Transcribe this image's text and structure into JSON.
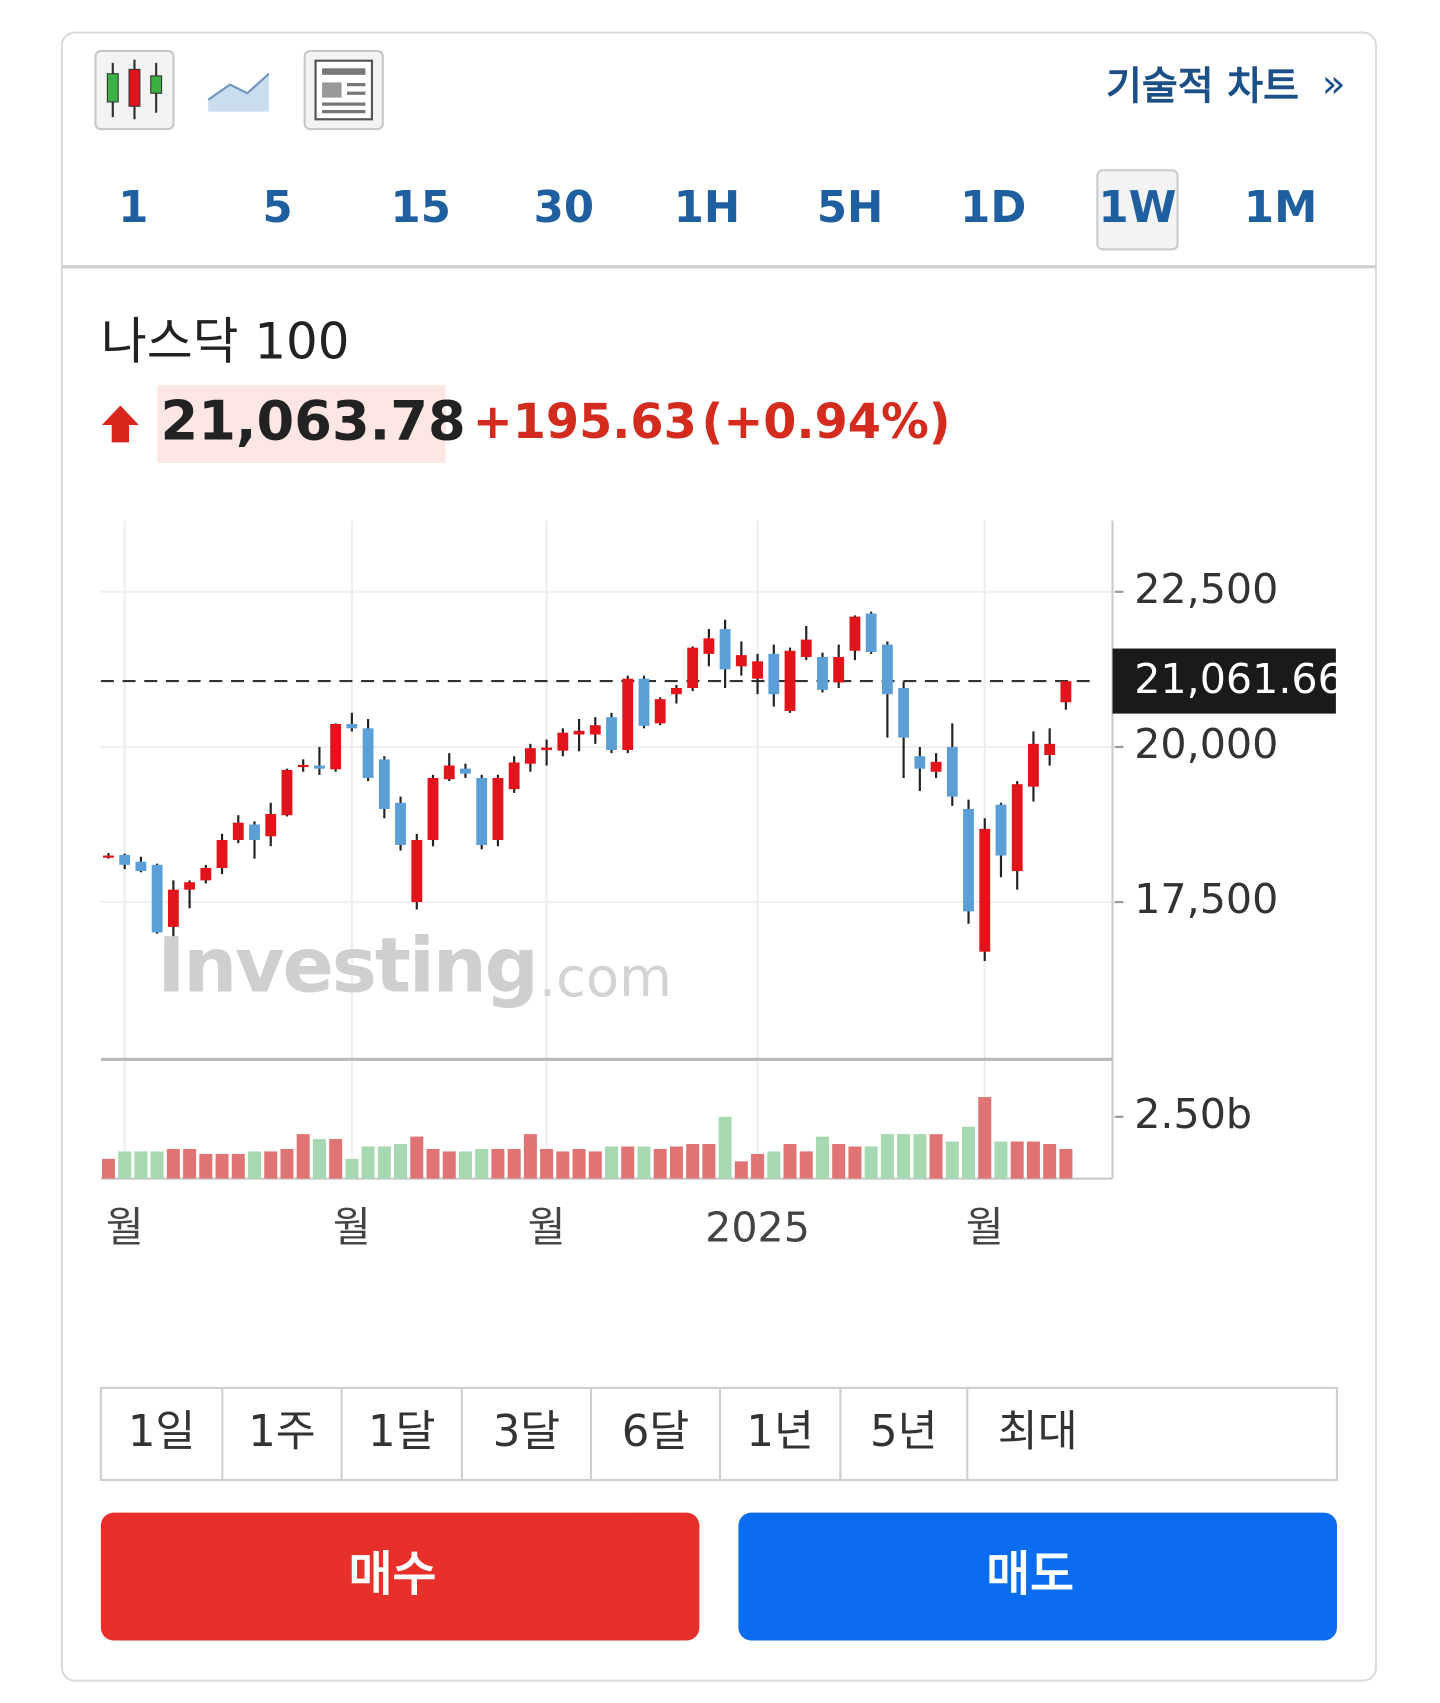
{
  "toolbar": {
    "link": "기술적 차트",
    "link_arrow": "»"
  },
  "intervals": [
    "1",
    "5",
    "15",
    "30",
    "1H",
    "5H",
    "1D",
    "1W",
    "1M"
  ],
  "selected_interval": "1W",
  "quote": {
    "name": "나스닥 100",
    "price": "21,063.78",
    "change": "+195.63",
    "change_pct": "(+0.94%)"
  },
  "chart_data": {
    "type": "candlestick",
    "categories": [
      null,
      "월",
      null,
      null,
      null,
      null,
      null,
      null,
      null,
      null,
      null,
      null,
      null,
      null,
      null,
      "월",
      null,
      null,
      null,
      null,
      null,
      null,
      null,
      null,
      null,
      null,
      null,
      "월",
      null,
      null,
      null,
      null,
      null,
      null,
      null,
      null,
      null,
      null,
      null,
      null,
      "2025",
      null,
      null,
      null,
      null,
      null,
      null,
      null,
      null,
      null,
      null,
      null,
      null,
      null,
      "월",
      null,
      null,
      null,
      null,
      null
    ],
    "open": [
      18230,
      18260,
      18150,
      18100,
      17100,
      17700,
      17850,
      18050,
      18500,
      18750,
      18560,
      18900,
      19690,
      19700,
      19640,
      20370,
      20300,
      19800,
      19100,
      17500,
      18500,
      19480,
      19650,
      19500,
      18500,
      19320,
      19730,
      19950,
      19940,
      20200,
      20200,
      20480,
      19950,
      21100,
      20380,
      20850,
      20950,
      21500,
      21900,
      21300,
      21100,
      21500,
      20580,
      21450,
      21450,
      21040,
      21550,
      22150,
      21650,
      20950,
      19850,
      19600,
      20000,
      19000,
      16700,
      19070,
      18000,
      19360,
      19870,
      20720
    ],
    "high": [
      18290,
      18280,
      18230,
      18120,
      17850,
      17850,
      18100,
      18600,
      18900,
      18800,
      19100,
      19650,
      19800,
      20000,
      20380,
      20550,
      20450,
      19850,
      19200,
      18600,
      19550,
      19900,
      19730,
      19550,
      19550,
      19850,
      20050,
      20120,
      20300,
      20450,
      20480,
      20550,
      21150,
      21150,
      20800,
      21000,
      21620,
      21900,
      22050,
      21700,
      21500,
      21650,
      21600,
      21950,
      21520,
      21650,
      22120,
      22180,
      21700,
      21050,
      20000,
      19900,
      20380,
      19150,
      18850,
      19100,
      19450,
      20250,
      20300,
      21070
    ],
    "low": [
      18200,
      18030,
      17980,
      16990,
      16950,
      17400,
      17800,
      17950,
      18450,
      18200,
      18400,
      18880,
      19600,
      19550,
      19600,
      20250,
      19450,
      18850,
      18330,
      17380,
      18400,
      19450,
      19500,
      18350,
      18400,
      19260,
      19600,
      19700,
      19850,
      19930,
      20050,
      19900,
      19900,
      20300,
      20350,
      20700,
      20900,
      21300,
      20950,
      21150,
      20850,
      20650,
      20550,
      21400,
      20880,
      20950,
      21400,
      21500,
      20150,
      19500,
      19290,
      19500,
      19050,
      17150,
      16550,
      17900,
      17700,
      19120,
      19700,
      20600
    ],
    "close": [
      18250,
      18100,
      18000,
      17010,
      17700,
      17820,
      18050,
      18500,
      18780,
      18500,
      18920,
      19630,
      19710,
      19650,
      20370,
      20300,
      19500,
      19000,
      18420,
      18500,
      19500,
      19700,
      19570,
      18420,
      19500,
      19750,
      19980,
      19990,
      20230,
      20260,
      20350,
      19950,
      21100,
      20340,
      20770,
      20950,
      21600,
      21750,
      21250,
      21480,
      21380,
      20850,
      21550,
      21730,
      20920,
      21450,
      22100,
      21530,
      20850,
      20150,
      19650,
      19760,
      19200,
      17350,
      18680,
      18250,
      19400,
      20050,
      20050,
      21060
    ],
    "volume": [
      0.8,
      1.1,
      1.1,
      1.1,
      1.2,
      1.2,
      1.0,
      1.0,
      1.0,
      1.1,
      1.1,
      1.2,
      1.8,
      1.6,
      1.6,
      0.8,
      1.3,
      1.3,
      1.4,
      1.7,
      1.2,
      1.1,
      1.1,
      1.2,
      1.2,
      1.2,
      1.8,
      1.2,
      1.1,
      1.2,
      1.1,
      1.3,
      1.3,
      1.3,
      1.2,
      1.3,
      1.4,
      1.4,
      2.5,
      0.7,
      1.0,
      1.1,
      1.4,
      1.1,
      1.7,
      1.4,
      1.3,
      1.3,
      1.8,
      1.8,
      1.8,
      1.8,
      1.5,
      2.1,
      3.3,
      1.5,
      1.5,
      1.5,
      1.4,
      1.2
    ],
    "up_color": "#e3131b",
    "down_color": "#5b9fd6",
    "volume_up_color": "#e07474",
    "volume_down_color": "#a6d9b1",
    "ylim": [
      15000,
      23650
    ],
    "yticks": [
      {
        "value": 17500,
        "label": "17,500"
      },
      {
        "value": 20000,
        "label": "20,000"
      },
      {
        "value": 22500,
        "label": "22,500"
      }
    ],
    "vlim": [
      0,
      4.78
    ],
    "vticks": [
      {
        "value": 2.5,
        "label": "2.50b"
      }
    ],
    "last_price": {
      "value": 21061.66,
      "label": "21,061.66"
    },
    "grid": true
  },
  "watermark": {
    "brand": "Investing",
    "suffix": ".com"
  },
  "ranges": [
    "1일",
    "1주",
    "1달",
    "3달",
    "6달",
    "1년",
    "5년",
    "최대"
  ],
  "buttons": {
    "buy": "매수",
    "sell": "매도"
  }
}
